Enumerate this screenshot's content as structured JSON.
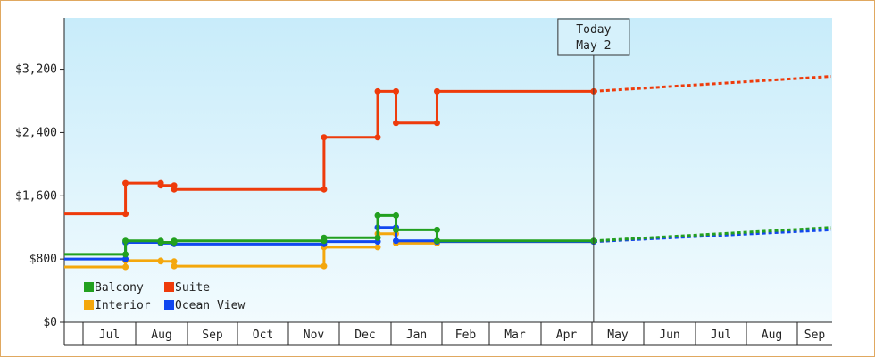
{
  "chart_data": {
    "type": "line",
    "title": "",
    "xlabel": "",
    "ylabel": "",
    "x_ticks": [
      "Jul",
      "Aug",
      "Sep",
      "Oct",
      "Nov",
      "Dec",
      "Jan",
      "Feb",
      "Mar",
      "Apr",
      "May",
      "Jun",
      "Jul",
      "Aug",
      "Sep"
    ],
    "y_ticks": [
      "$0",
      "$800",
      "$1,600",
      "$2,400",
      "$3,200"
    ],
    "ylim": [
      0,
      3200
    ],
    "xlim": [
      "2012-06-01",
      "2013-09-30"
    ],
    "grid": false,
    "legend_position": "bottom-left",
    "today_marker": {
      "line1": "Today",
      "line2": "May 2",
      "date": "2013-05-02"
    },
    "series": [
      {
        "name": "Balcony",
        "color": "#22a020",
        "points": [
          [
            "2012-06-01",
            860
          ],
          [
            "2012-07-26",
            860
          ],
          [
            "2012-07-26",
            1030
          ],
          [
            "2012-08-16",
            1030
          ],
          [
            "2012-08-16",
            1010
          ],
          [
            "2012-08-24",
            1010
          ],
          [
            "2012-08-24",
            1030
          ],
          [
            "2012-11-22",
            1030
          ],
          [
            "2012-11-22",
            1070
          ],
          [
            "2012-12-24",
            1070
          ],
          [
            "2012-12-24",
            1350
          ],
          [
            "2013-01-04",
            1350
          ],
          [
            "2013-01-04",
            1170
          ],
          [
            "2013-01-29",
            1170
          ],
          [
            "2013-01-29",
            1030
          ],
          [
            "2013-05-02",
            1030
          ]
        ],
        "projection": [
          [
            "2013-05-02",
            1030
          ],
          [
            "2013-09-30",
            1200
          ]
        ]
      },
      {
        "name": "Suite",
        "color": "#ee3b0b",
        "points": [
          [
            "2012-06-01",
            1370
          ],
          [
            "2012-07-26",
            1370
          ],
          [
            "2012-07-26",
            1760
          ],
          [
            "2012-08-16",
            1760
          ],
          [
            "2012-08-16",
            1730
          ],
          [
            "2012-08-24",
            1730
          ],
          [
            "2012-08-24",
            1680
          ],
          [
            "2012-11-22",
            1680
          ],
          [
            "2012-11-22",
            2340
          ],
          [
            "2012-12-24",
            2340
          ],
          [
            "2012-12-24",
            2920
          ],
          [
            "2013-01-04",
            2920
          ],
          [
            "2013-01-04",
            2520
          ],
          [
            "2013-01-29",
            2520
          ],
          [
            "2013-01-29",
            2920
          ],
          [
            "2013-05-02",
            2920
          ]
        ],
        "projection": [
          [
            "2013-05-02",
            2920
          ],
          [
            "2013-09-30",
            3110
          ]
        ]
      },
      {
        "name": "Interior",
        "color": "#f4a70c",
        "points": [
          [
            "2012-06-01",
            700
          ],
          [
            "2012-07-26",
            700
          ],
          [
            "2012-07-26",
            780
          ],
          [
            "2012-08-16",
            780
          ],
          [
            "2012-08-16",
            770
          ],
          [
            "2012-08-24",
            770
          ],
          [
            "2012-08-24",
            710
          ],
          [
            "2012-11-22",
            710
          ],
          [
            "2012-11-22",
            950
          ],
          [
            "2012-12-24",
            950
          ],
          [
            "2012-12-24",
            1120
          ],
          [
            "2013-01-04",
            1120
          ],
          [
            "2013-01-04",
            1000
          ],
          [
            "2013-01-29",
            1000
          ],
          [
            "2013-01-29",
            1020
          ],
          [
            "2013-05-02",
            1020
          ]
        ],
        "projection": [
          [
            "2013-05-02",
            1020
          ],
          [
            "2013-09-30",
            1180
          ]
        ]
      },
      {
        "name": "Ocean View",
        "color": "#1047f0",
        "points": [
          [
            "2012-06-01",
            800
          ],
          [
            "2012-07-26",
            800
          ],
          [
            "2012-07-26",
            1010
          ],
          [
            "2012-08-16",
            1010
          ],
          [
            "2012-08-16",
            1000
          ],
          [
            "2012-08-24",
            1000
          ],
          [
            "2012-08-24",
            990
          ],
          [
            "2012-11-22",
            990
          ],
          [
            "2012-11-22",
            1020
          ],
          [
            "2012-12-24",
            1020
          ],
          [
            "2012-12-24",
            1200
          ],
          [
            "2013-01-04",
            1200
          ],
          [
            "2013-01-04",
            1030
          ],
          [
            "2013-01-29",
            1030
          ],
          [
            "2013-01-29",
            1020
          ],
          [
            "2013-05-02",
            1020
          ]
        ],
        "projection": [
          [
            "2013-05-02",
            1020
          ],
          [
            "2013-09-30",
            1170
          ]
        ]
      }
    ],
    "legend_order": [
      "Balcony",
      "Suite",
      "Interior",
      "Ocean View"
    ]
  }
}
